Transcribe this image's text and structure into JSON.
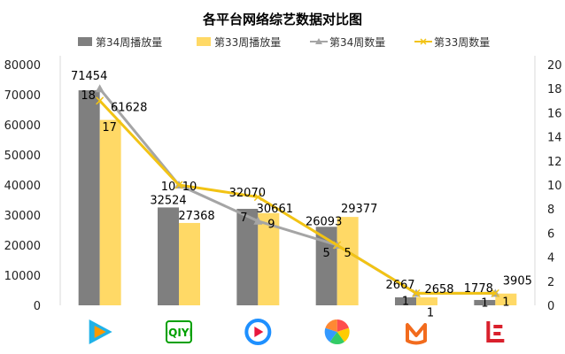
{
  "chart_data": {
    "type": "bar",
    "title": "各平台网络综艺数据对比图",
    "categories": [
      "腾讯视频",
      "爱奇艺",
      "优酷",
      "搜狐视频",
      "芒果TV",
      "乐视视频"
    ],
    "category_icons": [
      "tencent-video-logo-icon",
      "iqiyi-logo-icon",
      "youku-logo-icon",
      "sohu-video-logo-icon",
      "mango-tv-logo-icon",
      "letv-logo-icon"
    ],
    "iqiyi_logo_text": "iQIYI",
    "left_axis": {
      "ylim": [
        0,
        80000
      ],
      "ticks": [
        0,
        10000,
        20000,
        30000,
        40000,
        50000,
        60000,
        70000,
        80000
      ]
    },
    "right_axis": {
      "ylim": [
        0,
        20
      ],
      "ticks": [
        0,
        2,
        4,
        6,
        8,
        10,
        12,
        14,
        16,
        18,
        20
      ]
    },
    "bar_series": [
      {
        "name": "第34周播放量",
        "color": "#7f7f7f",
        "values": [
          71454,
          32524,
          32070,
          26093,
          2667,
          1778
        ]
      },
      {
        "name": "第33周播放量",
        "color": "#ffd966",
        "values": [
          61628,
          27368,
          30661,
          29377,
          2658,
          3905
        ]
      }
    ],
    "line_series": [
      {
        "name": "第34周数量",
        "color": "#a5a5a5",
        "marker": "triangle",
        "axis": "right",
        "values": [
          18,
          10,
          7,
          5,
          1,
          1
        ]
      },
      {
        "name": "第33周数量",
        "color": "#f2c314",
        "marker": "x",
        "axis": "right",
        "values": [
          17,
          10,
          9,
          5,
          1,
          1
        ]
      }
    ],
    "legend_position": "top",
    "grid": false
  }
}
